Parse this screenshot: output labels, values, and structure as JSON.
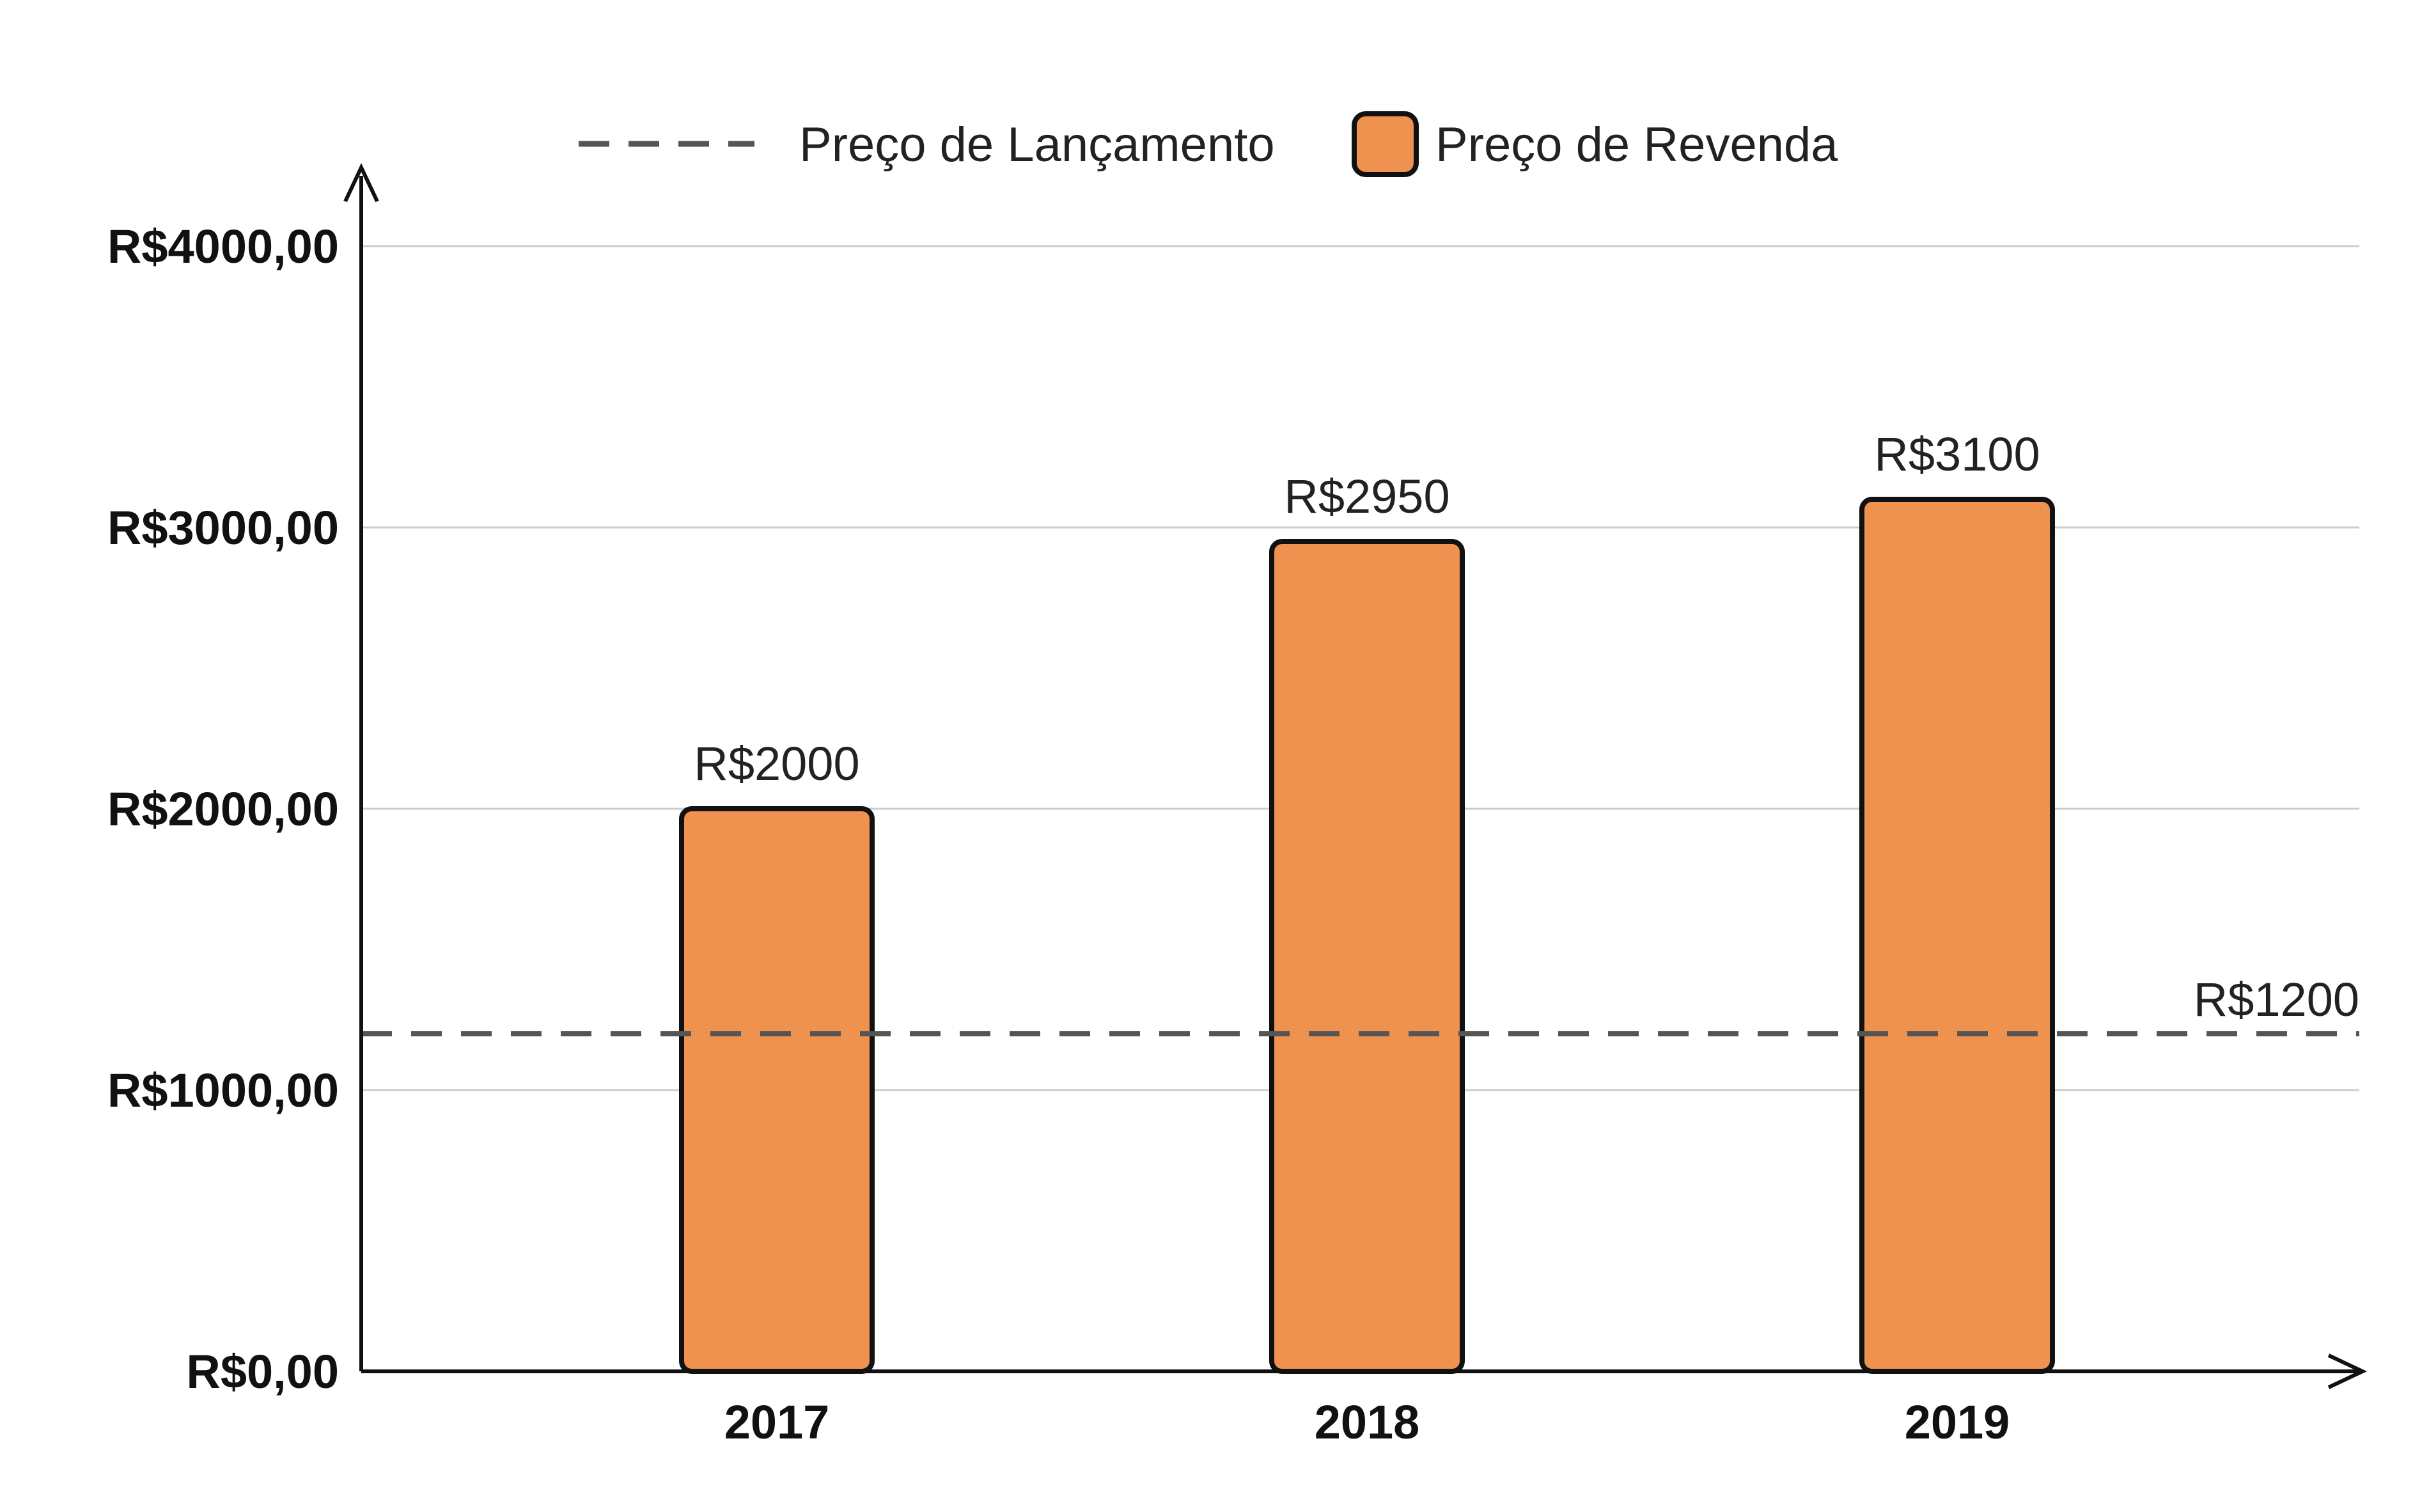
{
  "chart_data": {
    "type": "bar",
    "title": "",
    "xlabel": "",
    "ylabel": "",
    "categories": [
      "2017",
      "2018",
      "2019"
    ],
    "ylim": [
      0,
      4000
    ],
    "yticks": [
      0,
      1000,
      2000,
      3000,
      4000
    ],
    "ytick_labels": [
      "R$0,00",
      "R$1000,00",
      "R$2000,00",
      "R$3000,00",
      "R$4000,00"
    ],
    "grid": true,
    "legend_position": "top-center",
    "series": [
      {
        "name": "Preço de Revenda",
        "type": "bar",
        "color": "#EF914F",
        "values": [
          2000,
          2950,
          3100
        ],
        "value_labels": [
          "R$2000",
          "R$2950",
          "R$3100"
        ]
      },
      {
        "name": "Preço de Lançamento",
        "type": "line",
        "style": "dashed",
        "color": "#555555",
        "value": 1200,
        "value_label": "R$1200"
      }
    ]
  }
}
